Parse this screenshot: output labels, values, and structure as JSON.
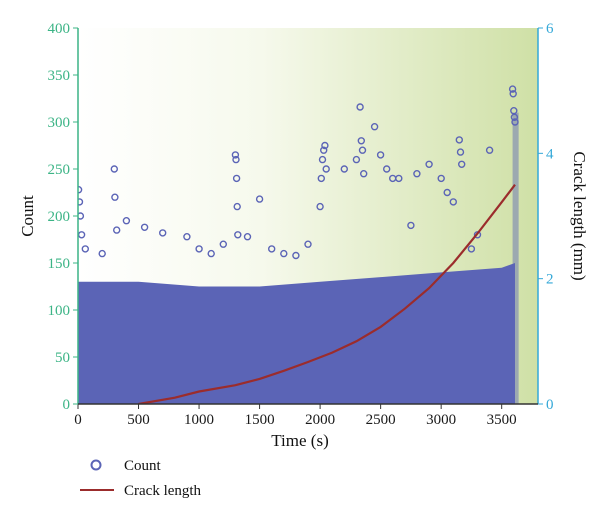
{
  "chart_data": {
    "type": "scatter",
    "xlabel": "Time (s)",
    "ylabel_left": "Count",
    "ylabel_right": "Crack length (mm)",
    "xlim": [
      0,
      3800
    ],
    "ylim_left": [
      0,
      400
    ],
    "ylim_right": [
      0,
      6
    ],
    "x_ticks": [
      0,
      500,
      1000,
      1500,
      2000,
      2500,
      3000,
      3500
    ],
    "y_left_ticks": [
      0,
      50,
      100,
      150,
      200,
      250,
      300,
      350,
      400
    ],
    "y_right_ticks": [
      0,
      2,
      4,
      6
    ],
    "grid": false,
    "legend_position": "bottom-left, below plot",
    "colors": {
      "count_marker": "#5b64b6",
      "crack_line": "#9b2c2c",
      "left_axis": "#3cb486",
      "right_axis": "#34a8d8",
      "bg_left": "#ffffff",
      "bg_right": "#cfe0a6"
    },
    "series": [
      {
        "name": "Count",
        "type": "scatter",
        "marker": "open-circle",
        "dense_band_max": [
          [
            0,
            130
          ],
          [
            500,
            130
          ],
          [
            1000,
            125
          ],
          [
            1500,
            125
          ],
          [
            2000,
            130
          ],
          [
            2500,
            135
          ],
          [
            3000,
            140
          ],
          [
            3500,
            145
          ],
          [
            3610,
            150
          ]
        ],
        "points": [
          [
            5,
            228
          ],
          [
            12,
            215
          ],
          [
            20,
            200
          ],
          [
            30,
            180
          ],
          [
            60,
            165
          ],
          [
            200,
            160
          ],
          [
            300,
            250
          ],
          [
            305,
            220
          ],
          [
            320,
            185
          ],
          [
            400,
            195
          ],
          [
            550,
            188
          ],
          [
            700,
            182
          ],
          [
            900,
            178
          ],
          [
            1000,
            165
          ],
          [
            1100,
            160
          ],
          [
            1200,
            170
          ],
          [
            1300,
            265
          ],
          [
            1305,
            260
          ],
          [
            1310,
            240
          ],
          [
            1315,
            210
          ],
          [
            1320,
            180
          ],
          [
            1400,
            178
          ],
          [
            1500,
            218
          ],
          [
            1600,
            165
          ],
          [
            1700,
            160
          ],
          [
            1800,
            158
          ],
          [
            1900,
            170
          ],
          [
            2000,
            210
          ],
          [
            2010,
            240
          ],
          [
            2020,
            260
          ],
          [
            2030,
            270
          ],
          [
            2040,
            275
          ],
          [
            2050,
            250
          ],
          [
            2200,
            250
          ],
          [
            2300,
            260
          ],
          [
            2330,
            316
          ],
          [
            2340,
            280
          ],
          [
            2350,
            270
          ],
          [
            2360,
            245
          ],
          [
            2450,
            295
          ],
          [
            2500,
            265
          ],
          [
            2550,
            250
          ],
          [
            2600,
            240
          ],
          [
            2650,
            240
          ],
          [
            2750,
            190
          ],
          [
            2800,
            245
          ],
          [
            2900,
            255
          ],
          [
            3000,
            240
          ],
          [
            3050,
            225
          ],
          [
            3100,
            215
          ],
          [
            3150,
            281
          ],
          [
            3160,
            268
          ],
          [
            3170,
            255
          ],
          [
            3250,
            165
          ],
          [
            3300,
            180
          ],
          [
            3400,
            270
          ],
          [
            3590,
            335
          ],
          [
            3595,
            330
          ],
          [
            3600,
            312
          ],
          [
            3605,
            305
          ],
          [
            3610,
            300
          ]
        ]
      },
      {
        "name": "Crack length",
        "type": "line",
        "axis": "right",
        "x": [
          500,
          800,
          1000,
          1300,
          1500,
          1700,
          1900,
          2100,
          2300,
          2500,
          2700,
          2900,
          3100,
          3300,
          3500,
          3610
        ],
        "values": [
          0,
          0.1,
          0.2,
          0.3,
          0.4,
          0.53,
          0.67,
          0.82,
          1.0,
          1.23,
          1.52,
          1.85,
          2.25,
          2.72,
          3.22,
          3.5
        ]
      }
    ]
  }
}
